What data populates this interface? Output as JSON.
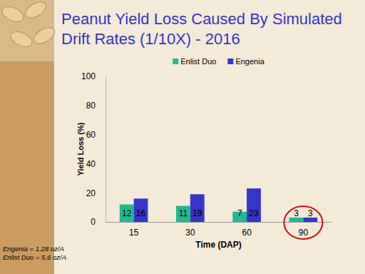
{
  "chart_data": {
    "type": "bar",
    "title": "Peanut Yield Loss Caused By Simulated Drift Rates (1/10X) - 2016",
    "x_label": "Time (DAP)",
    "y_label": "Yield Loss (%)",
    "categories": [
      "15",
      "30",
      "60",
      "90"
    ],
    "series": [
      {
        "name": "Enlist Duo",
        "color": "#1dbb8e",
        "values": [
          12,
          11,
          7,
          3
        ]
      },
      {
        "name": "Engenia",
        "color": "#3535cc",
        "values": [
          16,
          19,
          23,
          3
        ]
      }
    ],
    "ylim": [
      0,
      100
    ],
    "yticks": [
      0,
      20,
      40,
      60,
      80,
      100
    ],
    "grid": false,
    "legend": "top",
    "data_labels": true,
    "annotations": [
      "Engenia = 1.28 oz/A",
      "Enlist Duo = 5.6 oz/A"
    ]
  }
}
